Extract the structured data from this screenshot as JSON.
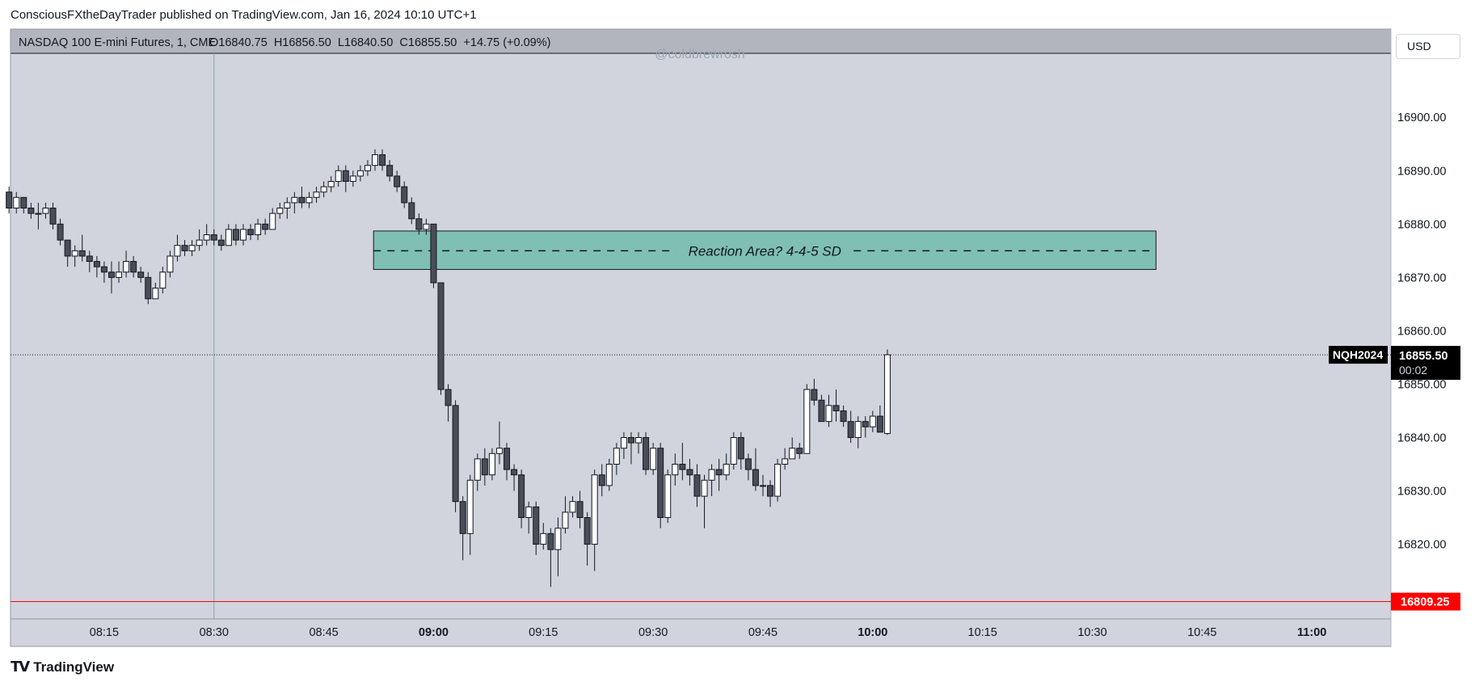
{
  "header": {
    "published_text": "ConsciousFXtheDayTrader published on TradingView.com, Jan 16, 2024 10:10 UTC+1"
  },
  "legend": {
    "symbol": "NASDAQ 100 E-mini Futures, 1, CME",
    "ohlc": "O16840.75  H16856.50  L16840.50  C16855.50  +14.75 (+0.09%)"
  },
  "watermark": "@coldbrewrosh",
  "currency_button": "USD",
  "footer": {
    "brand": "TradingView",
    "logo": "TV"
  },
  "colors": {
    "background": "#d1d4dc",
    "plot_border": "#131722",
    "up_body": "#ffffff",
    "down_body": "#4a4d57",
    "wick": "#131722",
    "zone_fill": "#7fbfb4",
    "last_price_tag": "#000000",
    "support_line": "#ff0000",
    "cursor_line": "#7fa8b6"
  },
  "chart_data": {
    "type": "candlestick",
    "symbol_tag": "NQH2024",
    "last_price_label": "16855.50",
    "countdown_label": "00:02",
    "last_price": 16855.5,
    "support_level": 16809.25,
    "support_label": "16809.25",
    "y_range": [
      16806,
      16912
    ],
    "y_ticks": [
      16820,
      16830,
      16840,
      16850,
      16860,
      16870,
      16880,
      16890,
      16900
    ],
    "y_tick_labels": [
      "16820.00",
      "16830.00",
      "16840.00",
      "16850.00",
      "16860.00",
      "16870.00",
      "16880.00",
      "16890.00",
      "16900.00"
    ],
    "x_ticks": [
      {
        "label": "08:15",
        "minute": 495,
        "bold": false
      },
      {
        "label": "08:30",
        "minute": 510,
        "bold": false
      },
      {
        "label": "08:45",
        "minute": 525,
        "bold": false
      },
      {
        "label": "09:00",
        "minute": 540,
        "bold": true
      },
      {
        "label": "09:15",
        "minute": 555,
        "bold": false
      },
      {
        "label": "09:30",
        "minute": 570,
        "bold": false
      },
      {
        "label": "09:45",
        "minute": 585,
        "bold": false
      },
      {
        "label": "10:00",
        "minute": 600,
        "bold": true
      },
      {
        "label": "10:15",
        "minute": 615,
        "bold": false
      },
      {
        "label": "10:30",
        "minute": 630,
        "bold": false
      },
      {
        "label": "10:45",
        "minute": 645,
        "bold": false
      },
      {
        "label": "11:00",
        "minute": 660,
        "bold": true
      }
    ],
    "x_range_minutes": [
      482.2,
      670.8
    ],
    "cursor_minute": 510,
    "zone": {
      "label": "Reaction Area? 4-4-5 SD",
      "top": 16878.7,
      "bottom": 16871.5,
      "mid": 16875,
      "start_minute": 531.8,
      "end_minute": 638.7
    },
    "candles": [
      {
        "t": 482,
        "o": 16886,
        "h": 16887,
        "l": 16882,
        "c": 16883
      },
      {
        "t": 483,
        "o": 16883,
        "h": 16886,
        "l": 16882,
        "c": 16885
      },
      {
        "t": 484,
        "o": 16885,
        "h": 16885,
        "l": 16882,
        "c": 16883
      },
      {
        "t": 485,
        "o": 16883,
        "h": 16884,
        "l": 16881,
        "c": 16882
      },
      {
        "t": 486,
        "o": 16882,
        "h": 16884,
        "l": 16879,
        "c": 16882
      },
      {
        "t": 487,
        "o": 16882,
        "h": 16884,
        "l": 16881,
        "c": 16883
      },
      {
        "t": 488,
        "o": 16883,
        "h": 16884,
        "l": 16879,
        "c": 16880
      },
      {
        "t": 489,
        "o": 16880,
        "h": 16881,
        "l": 16876,
        "c": 16877
      },
      {
        "t": 490,
        "o": 16877,
        "h": 16877,
        "l": 16872,
        "c": 16874
      },
      {
        "t": 491,
        "o": 16874,
        "h": 16876,
        "l": 16872,
        "c": 16875
      },
      {
        "t": 492,
        "o": 16875,
        "h": 16878,
        "l": 16873,
        "c": 16874
      },
      {
        "t": 493,
        "o": 16874,
        "h": 16875,
        "l": 16871,
        "c": 16873
      },
      {
        "t": 494,
        "o": 16873,
        "h": 16874,
        "l": 16870,
        "c": 16872
      },
      {
        "t": 495,
        "o": 16872,
        "h": 16873,
        "l": 16869,
        "c": 16871
      },
      {
        "t": 496,
        "o": 16871,
        "h": 16873,
        "l": 16867,
        "c": 16870
      },
      {
        "t": 497,
        "o": 16870,
        "h": 16873,
        "l": 16869,
        "c": 16871
      },
      {
        "t": 498,
        "o": 16871,
        "h": 16875,
        "l": 16870,
        "c": 16873
      },
      {
        "t": 499,
        "o": 16873,
        "h": 16874,
        "l": 16870,
        "c": 16871
      },
      {
        "t": 500,
        "o": 16871,
        "h": 16872,
        "l": 16869,
        "c": 16870
      },
      {
        "t": 501,
        "o": 16870,
        "h": 16871,
        "l": 16865,
        "c": 16866
      },
      {
        "t": 502,
        "o": 16866,
        "h": 16869,
        "l": 16866,
        "c": 16868
      },
      {
        "t": 503,
        "o": 16868,
        "h": 16872,
        "l": 16867,
        "c": 16871
      },
      {
        "t": 504,
        "o": 16871,
        "h": 16875,
        "l": 16870,
        "c": 16874
      },
      {
        "t": 505,
        "o": 16874,
        "h": 16878,
        "l": 16873,
        "c": 16876
      },
      {
        "t": 506,
        "o": 16876,
        "h": 16877,
        "l": 16874,
        "c": 16875
      },
      {
        "t": 507,
        "o": 16875,
        "h": 16877,
        "l": 16874,
        "c": 16876
      },
      {
        "t": 508,
        "o": 16876,
        "h": 16879,
        "l": 16875,
        "c": 16877
      },
      {
        "t": 509,
        "o": 16877,
        "h": 16880,
        "l": 16876,
        "c": 16878
      },
      {
        "t": 510,
        "o": 16878,
        "h": 16879,
        "l": 16876,
        "c": 16877
      },
      {
        "t": 511,
        "o": 16877,
        "h": 16878,
        "l": 16875,
        "c": 16876
      },
      {
        "t": 512,
        "o": 16876,
        "h": 16880,
        "l": 16876,
        "c": 16879
      },
      {
        "t": 513,
        "o": 16879,
        "h": 16880,
        "l": 16876,
        "c": 16877
      },
      {
        "t": 514,
        "o": 16877,
        "h": 16880,
        "l": 16876,
        "c": 16879
      },
      {
        "t": 515,
        "o": 16879,
        "h": 16880,
        "l": 16877,
        "c": 16878
      },
      {
        "t": 516,
        "o": 16878,
        "h": 16881,
        "l": 16877,
        "c": 16880
      },
      {
        "t": 517,
        "o": 16880,
        "h": 16881,
        "l": 16878,
        "c": 16879
      },
      {
        "t": 518,
        "o": 16879,
        "h": 16883,
        "l": 16879,
        "c": 16882
      },
      {
        "t": 519,
        "o": 16882,
        "h": 16884,
        "l": 16881,
        "c": 16883
      },
      {
        "t": 520,
        "o": 16883,
        "h": 16885,
        "l": 16881,
        "c": 16884
      },
      {
        "t": 521,
        "o": 16884,
        "h": 16886,
        "l": 16882,
        "c": 16885
      },
      {
        "t": 522,
        "o": 16885,
        "h": 16887,
        "l": 16883,
        "c": 16884
      },
      {
        "t": 523,
        "o": 16884,
        "h": 16886,
        "l": 16883,
        "c": 16885
      },
      {
        "t": 524,
        "o": 16885,
        "h": 16887,
        "l": 16884,
        "c": 16886
      },
      {
        "t": 525,
        "o": 16886,
        "h": 16888,
        "l": 16885,
        "c": 16887
      },
      {
        "t": 526,
        "o": 16887,
        "h": 16889,
        "l": 16886,
        "c": 16888
      },
      {
        "t": 527,
        "o": 16888,
        "h": 16891,
        "l": 16887,
        "c": 16890
      },
      {
        "t": 528,
        "o": 16890,
        "h": 16891,
        "l": 16886,
        "c": 16888
      },
      {
        "t": 529,
        "o": 16888,
        "h": 16890,
        "l": 16887,
        "c": 16889
      },
      {
        "t": 530,
        "o": 16889,
        "h": 16891,
        "l": 16888,
        "c": 16890
      },
      {
        "t": 531,
        "o": 16890,
        "h": 16892,
        "l": 16889,
        "c": 16891
      },
      {
        "t": 532,
        "o": 16891,
        "h": 16894,
        "l": 16890,
        "c": 16893
      },
      {
        "t": 533,
        "o": 16893,
        "h": 16894,
        "l": 16890,
        "c": 16891
      },
      {
        "t": 534,
        "o": 16891,
        "h": 16892,
        "l": 16888,
        "c": 16889
      },
      {
        "t": 535,
        "o": 16889,
        "h": 16890,
        "l": 16886,
        "c": 16887
      },
      {
        "t": 536,
        "o": 16887,
        "h": 16888,
        "l": 16883,
        "c": 16884
      },
      {
        "t": 537,
        "o": 16884,
        "h": 16885,
        "l": 16880,
        "c": 16881
      },
      {
        "t": 538,
        "o": 16881,
        "h": 16882,
        "l": 16878,
        "c": 16879
      },
      {
        "t": 539,
        "o": 16879,
        "h": 16881,
        "l": 16878,
        "c": 16880
      },
      {
        "t": 540,
        "o": 16880,
        "h": 16880,
        "l": 16868,
        "c": 16869
      },
      {
        "t": 541,
        "o": 16869,
        "h": 16869,
        "l": 16848,
        "c": 16849
      },
      {
        "t": 542,
        "o": 16849,
        "h": 16850,
        "l": 16843,
        "c": 16846
      },
      {
        "t": 543,
        "o": 16846,
        "h": 16847,
        "l": 16826,
        "c": 16828
      },
      {
        "t": 544,
        "o": 16828,
        "h": 16829,
        "l": 16817,
        "c": 16822
      },
      {
        "t": 545,
        "o": 16822,
        "h": 16833,
        "l": 16818,
        "c": 16832
      },
      {
        "t": 546,
        "o": 16832,
        "h": 16837,
        "l": 16830,
        "c": 16836
      },
      {
        "t": 547,
        "o": 16836,
        "h": 16838,
        "l": 16831,
        "c": 16833
      },
      {
        "t": 548,
        "o": 16833,
        "h": 16838,
        "l": 16832,
        "c": 16837
      },
      {
        "t": 549,
        "o": 16837,
        "h": 16843,
        "l": 16835,
        "c": 16838
      },
      {
        "t": 550,
        "o": 16838,
        "h": 16839,
        "l": 16832,
        "c": 16834
      },
      {
        "t": 551,
        "o": 16834,
        "h": 16835,
        "l": 16830,
        "c": 16833
      },
      {
        "t": 552,
        "o": 16833,
        "h": 16834,
        "l": 16823,
        "c": 16825
      },
      {
        "t": 553,
        "o": 16825,
        "h": 16828,
        "l": 16822,
        "c": 16827
      },
      {
        "t": 554,
        "o": 16827,
        "h": 16828,
        "l": 16818,
        "c": 16820
      },
      {
        "t": 555,
        "o": 16820,
        "h": 16824,
        "l": 16819,
        "c": 16822
      },
      {
        "t": 556,
        "o": 16822,
        "h": 16823,
        "l": 16812,
        "c": 16819
      },
      {
        "t": 557,
        "o": 16819,
        "h": 16825,
        "l": 16814,
        "c": 16823
      },
      {
        "t": 558,
        "o": 16823,
        "h": 16829,
        "l": 16822,
        "c": 16826
      },
      {
        "t": 559,
        "o": 16826,
        "h": 16829,
        "l": 16825,
        "c": 16828
      },
      {
        "t": 560,
        "o": 16828,
        "h": 16830,
        "l": 16823,
        "c": 16825
      },
      {
        "t": 561,
        "o": 16825,
        "h": 16826,
        "l": 16816,
        "c": 16820
      },
      {
        "t": 562,
        "o": 16820,
        "h": 16834,
        "l": 16815,
        "c": 16833
      },
      {
        "t": 563,
        "o": 16833,
        "h": 16835,
        "l": 16829,
        "c": 16831
      },
      {
        "t": 564,
        "o": 16831,
        "h": 16836,
        "l": 16830,
        "c": 16835
      },
      {
        "t": 565,
        "o": 16835,
        "h": 16839,
        "l": 16833,
        "c": 16838
      },
      {
        "t": 566,
        "o": 16838,
        "h": 16841,
        "l": 16836,
        "c": 16840
      },
      {
        "t": 567,
        "o": 16840,
        "h": 16841,
        "l": 16835,
        "c": 16839
      },
      {
        "t": 568,
        "o": 16839,
        "h": 16841,
        "l": 16837,
        "c": 16840
      },
      {
        "t": 569,
        "o": 16840,
        "h": 16841,
        "l": 16833,
        "c": 16834
      },
      {
        "t": 570,
        "o": 16834,
        "h": 16839,
        "l": 16833,
        "c": 16838
      },
      {
        "t": 571,
        "o": 16838,
        "h": 16839,
        "l": 16823,
        "c": 16825
      },
      {
        "t": 572,
        "o": 16825,
        "h": 16834,
        "l": 16824,
        "c": 16833
      },
      {
        "t": 573,
        "o": 16833,
        "h": 16837,
        "l": 16831,
        "c": 16835
      },
      {
        "t": 574,
        "o": 16835,
        "h": 16839,
        "l": 16832,
        "c": 16834
      },
      {
        "t": 575,
        "o": 16834,
        "h": 16836,
        "l": 16831,
        "c": 16833
      },
      {
        "t": 576,
        "o": 16833,
        "h": 16835,
        "l": 16827,
        "c": 16829
      },
      {
        "t": 577,
        "o": 16829,
        "h": 16833,
        "l": 16823,
        "c": 16832
      },
      {
        "t": 578,
        "o": 16832,
        "h": 16835,
        "l": 16829,
        "c": 16834
      },
      {
        "t": 579,
        "o": 16834,
        "h": 16836,
        "l": 16830,
        "c": 16833
      },
      {
        "t": 580,
        "o": 16833,
        "h": 16837,
        "l": 16832,
        "c": 16835
      },
      {
        "t": 581,
        "o": 16835,
        "h": 16841,
        "l": 16834,
        "c": 16840
      },
      {
        "t": 582,
        "o": 16840,
        "h": 16841,
        "l": 16834,
        "c": 16836
      },
      {
        "t": 583,
        "o": 16836,
        "h": 16837,
        "l": 16832,
        "c": 16834
      },
      {
        "t": 584,
        "o": 16834,
        "h": 16838,
        "l": 16830,
        "c": 16831
      },
      {
        "t": 585,
        "o": 16831,
        "h": 16833,
        "l": 16829,
        "c": 16831
      },
      {
        "t": 586,
        "o": 16831,
        "h": 16832,
        "l": 16827,
        "c": 16829
      },
      {
        "t": 587,
        "o": 16829,
        "h": 16836,
        "l": 16828,
        "c": 16835
      },
      {
        "t": 588,
        "o": 16835,
        "h": 16838,
        "l": 16834,
        "c": 16836
      },
      {
        "t": 589,
        "o": 16836,
        "h": 16840,
        "l": 16836,
        "c": 16838
      },
      {
        "t": 590,
        "o": 16838,
        "h": 16839,
        "l": 16836,
        "c": 16837
      },
      {
        "t": 591,
        "o": 16837,
        "h": 16850,
        "l": 16837,
        "c": 16849
      },
      {
        "t": 592,
        "o": 16849,
        "h": 16851,
        "l": 16846,
        "c": 16847
      },
      {
        "t": 593,
        "o": 16847,
        "h": 16848,
        "l": 16843,
        "c": 16843
      },
      {
        "t": 594,
        "o": 16843,
        "h": 16848,
        "l": 16842,
        "c": 16846
      },
      {
        "t": 595,
        "o": 16846,
        "h": 16849,
        "l": 16843,
        "c": 16845
      },
      {
        "t": 596,
        "o": 16845,
        "h": 16846,
        "l": 16842,
        "c": 16843
      },
      {
        "t": 597,
        "o": 16843,
        "h": 16845,
        "l": 16839,
        "c": 16840
      },
      {
        "t": 598,
        "o": 16840,
        "h": 16844,
        "l": 16838,
        "c": 16843
      },
      {
        "t": 599,
        "o": 16843,
        "h": 16844,
        "l": 16840,
        "c": 16842
      },
      {
        "t": 600,
        "o": 16842,
        "h": 16845,
        "l": 16841,
        "c": 16844
      },
      {
        "t": 601,
        "o": 16844,
        "h": 16846,
        "l": 16841,
        "c": 16841
      },
      {
        "t": 602,
        "o": 16840.75,
        "h": 16856.5,
        "l": 16840.5,
        "c": 16855.5
      }
    ]
  }
}
